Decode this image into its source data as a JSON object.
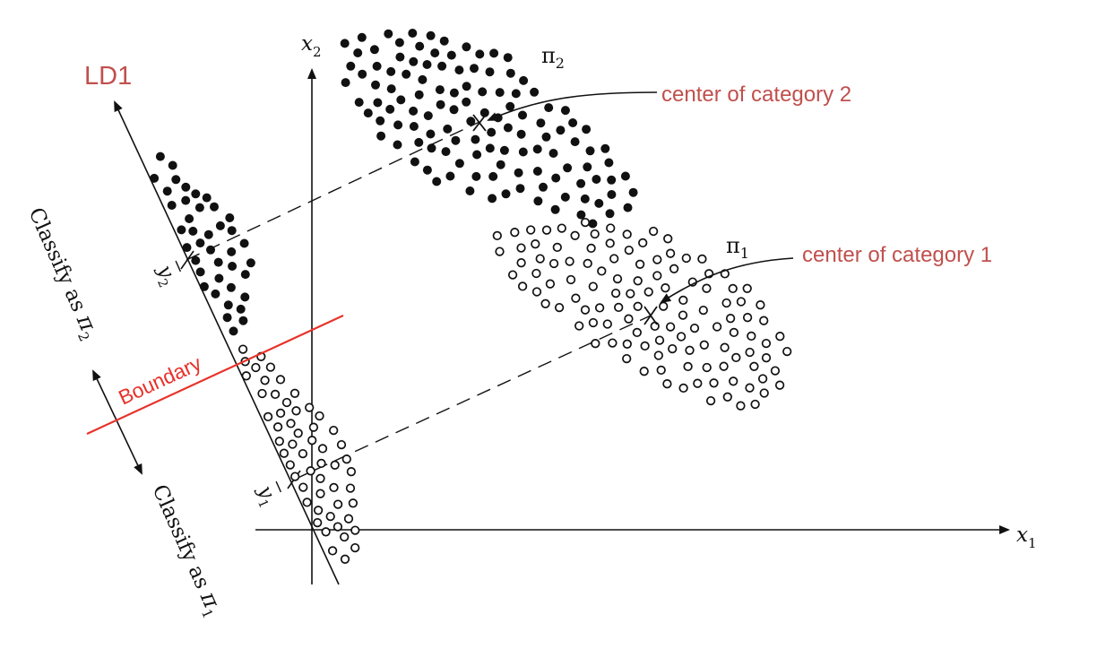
{
  "colors": {
    "ink": "#111111",
    "annotation": "#c0504d",
    "boundary": "#e8322a"
  },
  "axes": {
    "x_label": "x",
    "x_sub": "1",
    "y_label": "x",
    "y_sub": "2"
  },
  "ld_axis": {
    "label": "LD1"
  },
  "categories": {
    "cat2": {
      "symbol": "π",
      "sub": "2",
      "marker": "filled",
      "center_label": "center of category 2"
    },
    "cat1": {
      "symbol": "π",
      "sub": "1",
      "marker": "open",
      "center_label": "center of category 1"
    }
  },
  "projections": {
    "y2_label": "y",
    "y2_sub": "2",
    "y1_label": "y",
    "y1_sub": "1"
  },
  "boundary": {
    "label": "Boundary"
  },
  "regions": {
    "upper": {
      "text": "Classify as ",
      "symbol": "π",
      "sub": "2"
    },
    "lower": {
      "text": "Classify as ",
      "symbol": "π",
      "sub": "1"
    }
  }
}
